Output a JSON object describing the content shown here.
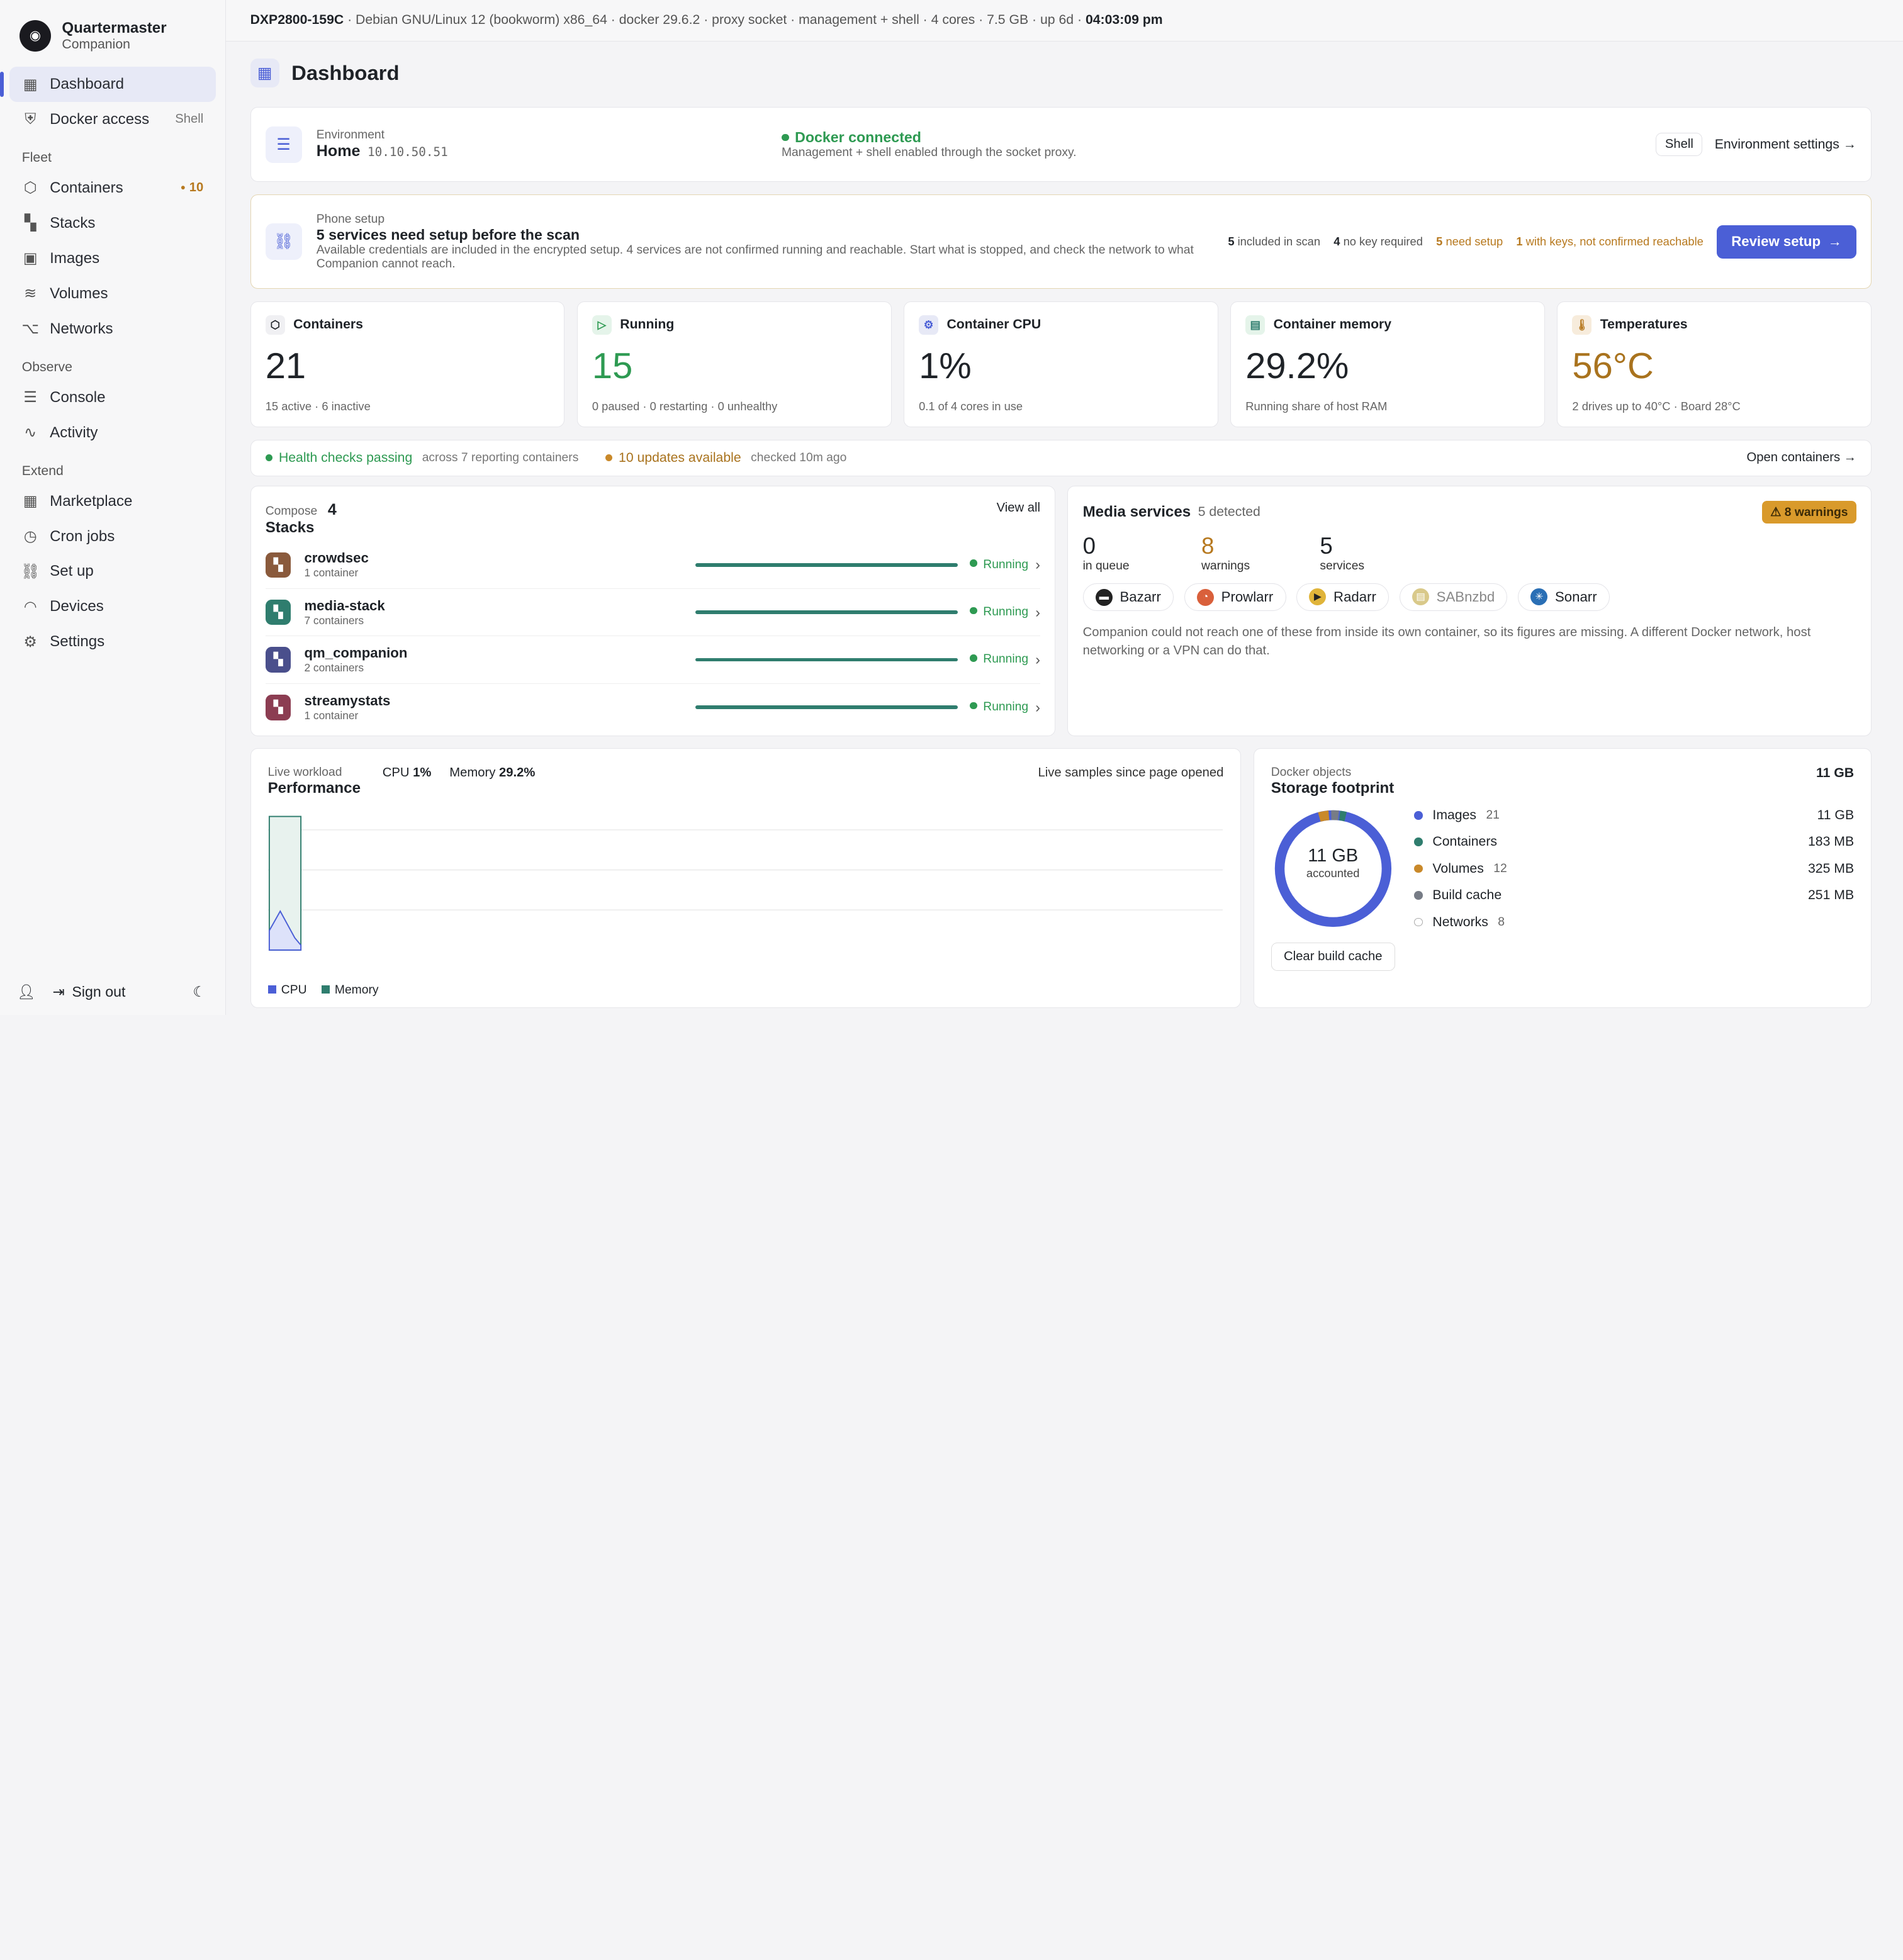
{
  "brand": {
    "name": "Quartermaster",
    "sub": "Companion"
  },
  "nav": {
    "dashboard": "Dashboard",
    "docker_access": "Docker access",
    "docker_access_tag": "Shell",
    "fleet": "Fleet",
    "containers": "Containers",
    "containers_badge": "10",
    "stacks": "Stacks",
    "images": "Images",
    "volumes": "Volumes",
    "networks": "Networks",
    "observe": "Observe",
    "console": "Console",
    "activity": "Activity",
    "extend": "Extend",
    "marketplace": "Marketplace",
    "cron_jobs": "Cron jobs",
    "set_up": "Set up",
    "devices": "Devices",
    "settings": "Settings",
    "sign_out": "Sign out"
  },
  "topbar": {
    "host": "DXP2800-159C",
    "info": " · Debian GNU/Linux 12 (bookworm) x86_64 · docker 29.6.2 · proxy socket · management + shell · 4 cores · 7.5 GB · up 6d · ",
    "time": "04:03:09 pm"
  },
  "page": {
    "title": "Dashboard"
  },
  "environment": {
    "label": "Environment",
    "name": "Home",
    "ip": "10.10.50.51",
    "status": "Docker connected",
    "status_sub": "Management + shell enabled through the socket proxy.",
    "shell": "Shell",
    "settings_link": "Environment settings"
  },
  "setup": {
    "label": "Phone setup",
    "title": "5 services need setup before the scan",
    "desc": "Available credentials are included in the encrypted setup. 4 services are not confirmed running and reachable. Start what is stopped, and check the network to what Companion cannot reach.",
    "m1_n": "5",
    "m1_l": "included in scan",
    "m2_n": "4",
    "m2_l": "no key required",
    "m3_n": "5",
    "m3_l": "need setup",
    "m4_n": "1",
    "m4_l": "with keys, not confirmed reachable",
    "button": "Review setup"
  },
  "stats": {
    "containers": {
      "label": "Containers",
      "value": "21",
      "sub": "15 active · 6 inactive"
    },
    "running": {
      "label": "Running",
      "value": "15",
      "sub": "0 paused · 0 restarting · 0 unhealthy"
    },
    "cpu": {
      "label": "Container CPU",
      "value": "1%",
      "sub": "0.1 of 4 cores in use"
    },
    "memory": {
      "label": "Container memory",
      "value": "29.2%",
      "sub": "Running share of host RAM"
    },
    "temps": {
      "label": "Temperatures",
      "value": "56°C",
      "sub": "2 drives up to 40°C · Board 28°C"
    }
  },
  "health": {
    "passing": "Health checks passing",
    "passing_sub": "across 7 reporting containers",
    "updates": "10 updates available",
    "updates_sub": "checked 10m ago",
    "open": "Open containers"
  },
  "stacks": {
    "label": "Compose",
    "count": "4",
    "title": "Stacks",
    "view_all": "View all",
    "items": [
      {
        "name": "crowdsec",
        "sub": "1 container",
        "status": "Running",
        "color": "#8a5a3c"
      },
      {
        "name": "media-stack",
        "sub": "7 containers",
        "status": "Running",
        "color": "#2f7d6e"
      },
      {
        "name": "qm_companion",
        "sub": "2 containers",
        "status": "Running",
        "color": "#4a4f8c"
      },
      {
        "name": "streamystats",
        "sub": "1 container",
        "status": "Running",
        "color": "#8c3d52"
      }
    ]
  },
  "media": {
    "title": "Media services",
    "detected": "5 detected",
    "warnings_badge": "8 warnings",
    "queue_n": "0",
    "queue_l": "in queue",
    "warn_n": "8",
    "warn_l": "warnings",
    "svc_n": "5",
    "svc_l": "services",
    "services": [
      "Bazarr",
      "Prowlarr",
      "Radarr",
      "SABnzbd",
      "Sonarr"
    ],
    "note": "Companion could not reach one of these from inside its own container, so its figures are missing. A different Docker network, host networking or a VPN can do that."
  },
  "performance": {
    "label": "Live workload",
    "title": "Performance",
    "cpu_l": "CPU",
    "cpu_v": "1%",
    "mem_l": "Memory",
    "mem_v": "29.2%",
    "note": "Live samples since page opened",
    "legend_cpu": "CPU",
    "legend_mem": "Memory"
  },
  "storage": {
    "label": "Docker objects",
    "title": "Storage footprint",
    "total": "11 GB",
    "center_v": "11 GB",
    "center_l": "accounted",
    "items": [
      {
        "name": "Images",
        "count": "21",
        "value": "11 GB",
        "color": "#4b5fd6"
      },
      {
        "name": "Containers",
        "count": "",
        "value": "183 MB",
        "color": "#2f7d6e"
      },
      {
        "name": "Volumes",
        "count": "12",
        "value": "325 MB",
        "color": "#c9892a"
      },
      {
        "name": "Build cache",
        "count": "",
        "value": "251 MB",
        "color": "#777c86"
      },
      {
        "name": "Networks",
        "count": "8",
        "value": "",
        "color": "#ffffff"
      }
    ],
    "clear": "Clear build cache"
  }
}
